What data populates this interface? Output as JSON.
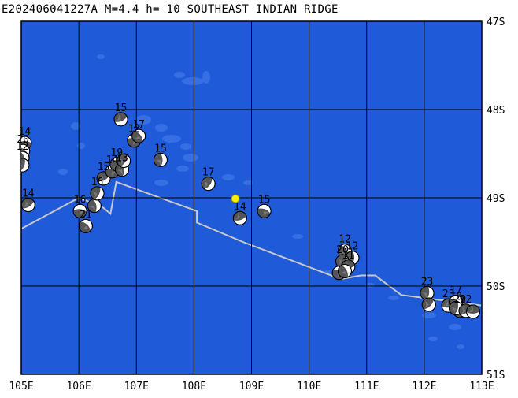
{
  "title": "E202406041227A M=4.4 h= 10 SOUTHEAST INDIAN RIDGE",
  "map": {
    "lon_range": [
      105,
      113
    ],
    "lat_range": [
      -51,
      -47
    ],
    "lon_labels": [
      "105E",
      "106E",
      "107E",
      "108E",
      "109E",
      "110E",
      "111E",
      "112E",
      "113E"
    ],
    "lat_labels": [
      "47S",
      "48S",
      "49S",
      "50S",
      "51S"
    ],
    "colors": {
      "ocean": "#1f5ad8",
      "shoal": "#3b73e6",
      "ridge": "#c8c8c8",
      "grid": "#000000",
      "epicenter": "#ffee00"
    }
  },
  "epicenter": {
    "lon": 108.72,
    "lat": -49.01
  },
  "ridge_line": [
    [
      105.0,
      -49.35
    ],
    [
      106.0,
      -49.0
    ],
    [
      106.4,
      -49.1
    ],
    [
      106.55,
      -49.18
    ],
    [
      106.65,
      -48.82
    ],
    [
      108.05,
      -49.15
    ],
    [
      108.05,
      -49.28
    ],
    [
      108.85,
      -49.5
    ],
    [
      110.55,
      -49.92
    ],
    [
      110.9,
      -49.88
    ],
    [
      111.15,
      -49.88
    ],
    [
      111.6,
      -50.1
    ],
    [
      113.0,
      -50.22
    ]
  ],
  "mechanisms": [
    {
      "lon": 105.06,
      "lat": -48.38,
      "depth": "14"
    },
    {
      "lon": 105.03,
      "lat": -48.47,
      "depth": "20"
    },
    {
      "lon": 105.02,
      "lat": -48.55,
      "depth": "12"
    },
    {
      "lon": 105.02,
      "lat": -48.63,
      "depth": ""
    },
    {
      "lon": 105.12,
      "lat": -49.08,
      "depth": "14"
    },
    {
      "lon": 106.02,
      "lat": -49.15,
      "depth": "16"
    },
    {
      "lon": 106.12,
      "lat": -49.32,
      "depth": "21"
    },
    {
      "lon": 106.27,
      "lat": -49.09,
      "depth": ""
    },
    {
      "lon": 106.32,
      "lat": -48.95,
      "depth": "16"
    },
    {
      "lon": 106.43,
      "lat": -48.78,
      "depth": "15"
    },
    {
      "lon": 106.58,
      "lat": -48.7,
      "depth": "14"
    },
    {
      "lon": 106.66,
      "lat": -48.62,
      "depth": "19"
    },
    {
      "lon": 106.75,
      "lat": -48.68,
      "depth": "13"
    },
    {
      "lon": 106.78,
      "lat": -48.58,
      "depth": ""
    },
    {
      "lon": 106.73,
      "lat": -48.11,
      "depth": "15"
    },
    {
      "lon": 106.96,
      "lat": -48.35,
      "depth": "12"
    },
    {
      "lon": 107.04,
      "lat": -48.3,
      "depth": "17"
    },
    {
      "lon": 107.42,
      "lat": -48.57,
      "depth": "15"
    },
    {
      "lon": 108.25,
      "lat": -48.84,
      "depth": "17"
    },
    {
      "lon": 108.8,
      "lat": -49.23,
      "depth": "14"
    },
    {
      "lon": 109.22,
      "lat": -49.15,
      "depth": "15"
    },
    {
      "lon": 110.62,
      "lat": -49.6,
      "depth": "12"
    },
    {
      "lon": 110.75,
      "lat": -49.68,
      "depth": "12"
    },
    {
      "lon": 110.58,
      "lat": -49.72,
      "depth": "20"
    },
    {
      "lon": 110.68,
      "lat": -49.78,
      "depth": "11"
    },
    {
      "lon": 110.52,
      "lat": -49.85,
      "depth": ""
    },
    {
      "lon": 110.62,
      "lat": -49.83,
      "depth": ""
    },
    {
      "lon": 112.05,
      "lat": -50.08,
      "depth": "23"
    },
    {
      "lon": 112.08,
      "lat": -50.21,
      "depth": ""
    },
    {
      "lon": 112.42,
      "lat": -50.22,
      "depth": "23"
    },
    {
      "lon": 112.55,
      "lat": -50.18,
      "depth": "17"
    },
    {
      "lon": 112.62,
      "lat": -50.28,
      "depth": "20"
    },
    {
      "lon": 112.55,
      "lat": -50.25,
      "depth": "18"
    },
    {
      "lon": 112.72,
      "lat": -50.28,
      "depth": "12"
    },
    {
      "lon": 112.85,
      "lat": -50.29,
      "depth": ""
    }
  ]
}
